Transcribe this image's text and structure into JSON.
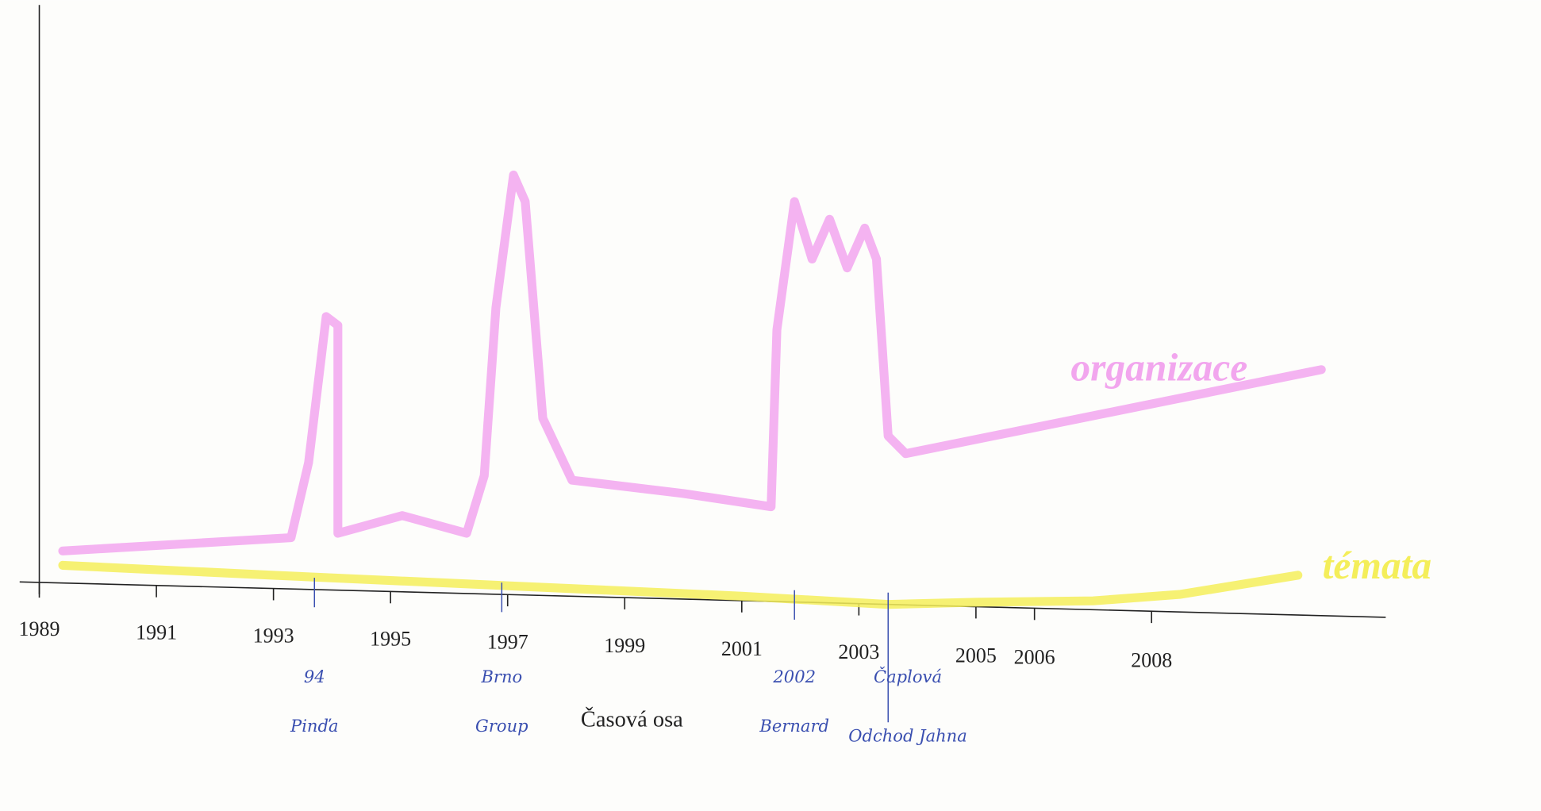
{
  "chart_data": {
    "type": "line",
    "x_label": "Časová osa",
    "xlim": [
      1989,
      2012
    ],
    "xticks": [
      1989,
      1991,
      1993,
      1995,
      1997,
      1999,
      2001,
      2003,
      2005,
      2006,
      2008
    ],
    "ylim": [
      0,
      100
    ],
    "series": [
      {
        "name": "organizace",
        "color": "#f2a6ee",
        "x": [
          1989.4,
          1993.3,
          1993.6,
          1993.9,
          1994.1,
          1994.1,
          1995.2,
          1996.3,
          1996.6,
          1996.8,
          1997.1,
          1997.3,
          1997.6,
          1998.1,
          2000.0,
          2001.5,
          2001.6,
          2001.9,
          2002.2,
          2002.5,
          2002.8,
          2003.1,
          2003.3,
          2003.5,
          2003.8,
          2010.9
        ],
        "values": [
          7,
          10,
          27,
          60,
          58,
          11,
          15,
          11,
          24,
          62,
          92,
          86,
          37,
          23,
          20,
          17,
          57,
          86,
          73,
          82,
          71,
          80,
          73,
          33,
          29,
          48
        ]
      },
      {
        "name": "témata",
        "color": "#f4ee5a",
        "x": [
          1989.4,
          1993,
          1997,
          2001,
          2003.5,
          2005,
          2007,
          2008.5,
          2010.5
        ],
        "values": [
          4,
          3,
          2,
          1,
          0,
          1,
          2,
          4,
          9
        ]
      }
    ],
    "events": [
      {
        "x": 1993.7,
        "labels": [
          "94",
          "Pinďa"
        ]
      },
      {
        "x": 1996.9,
        "labels": [
          "Brno",
          "Group"
        ]
      },
      {
        "x": 2001.9,
        "labels": [
          "2002",
          "Bernard"
        ]
      },
      {
        "x": 2003.5,
        "labels": [
          "Čaplová",
          "Odchod Jahna"
        ]
      }
    ]
  }
}
